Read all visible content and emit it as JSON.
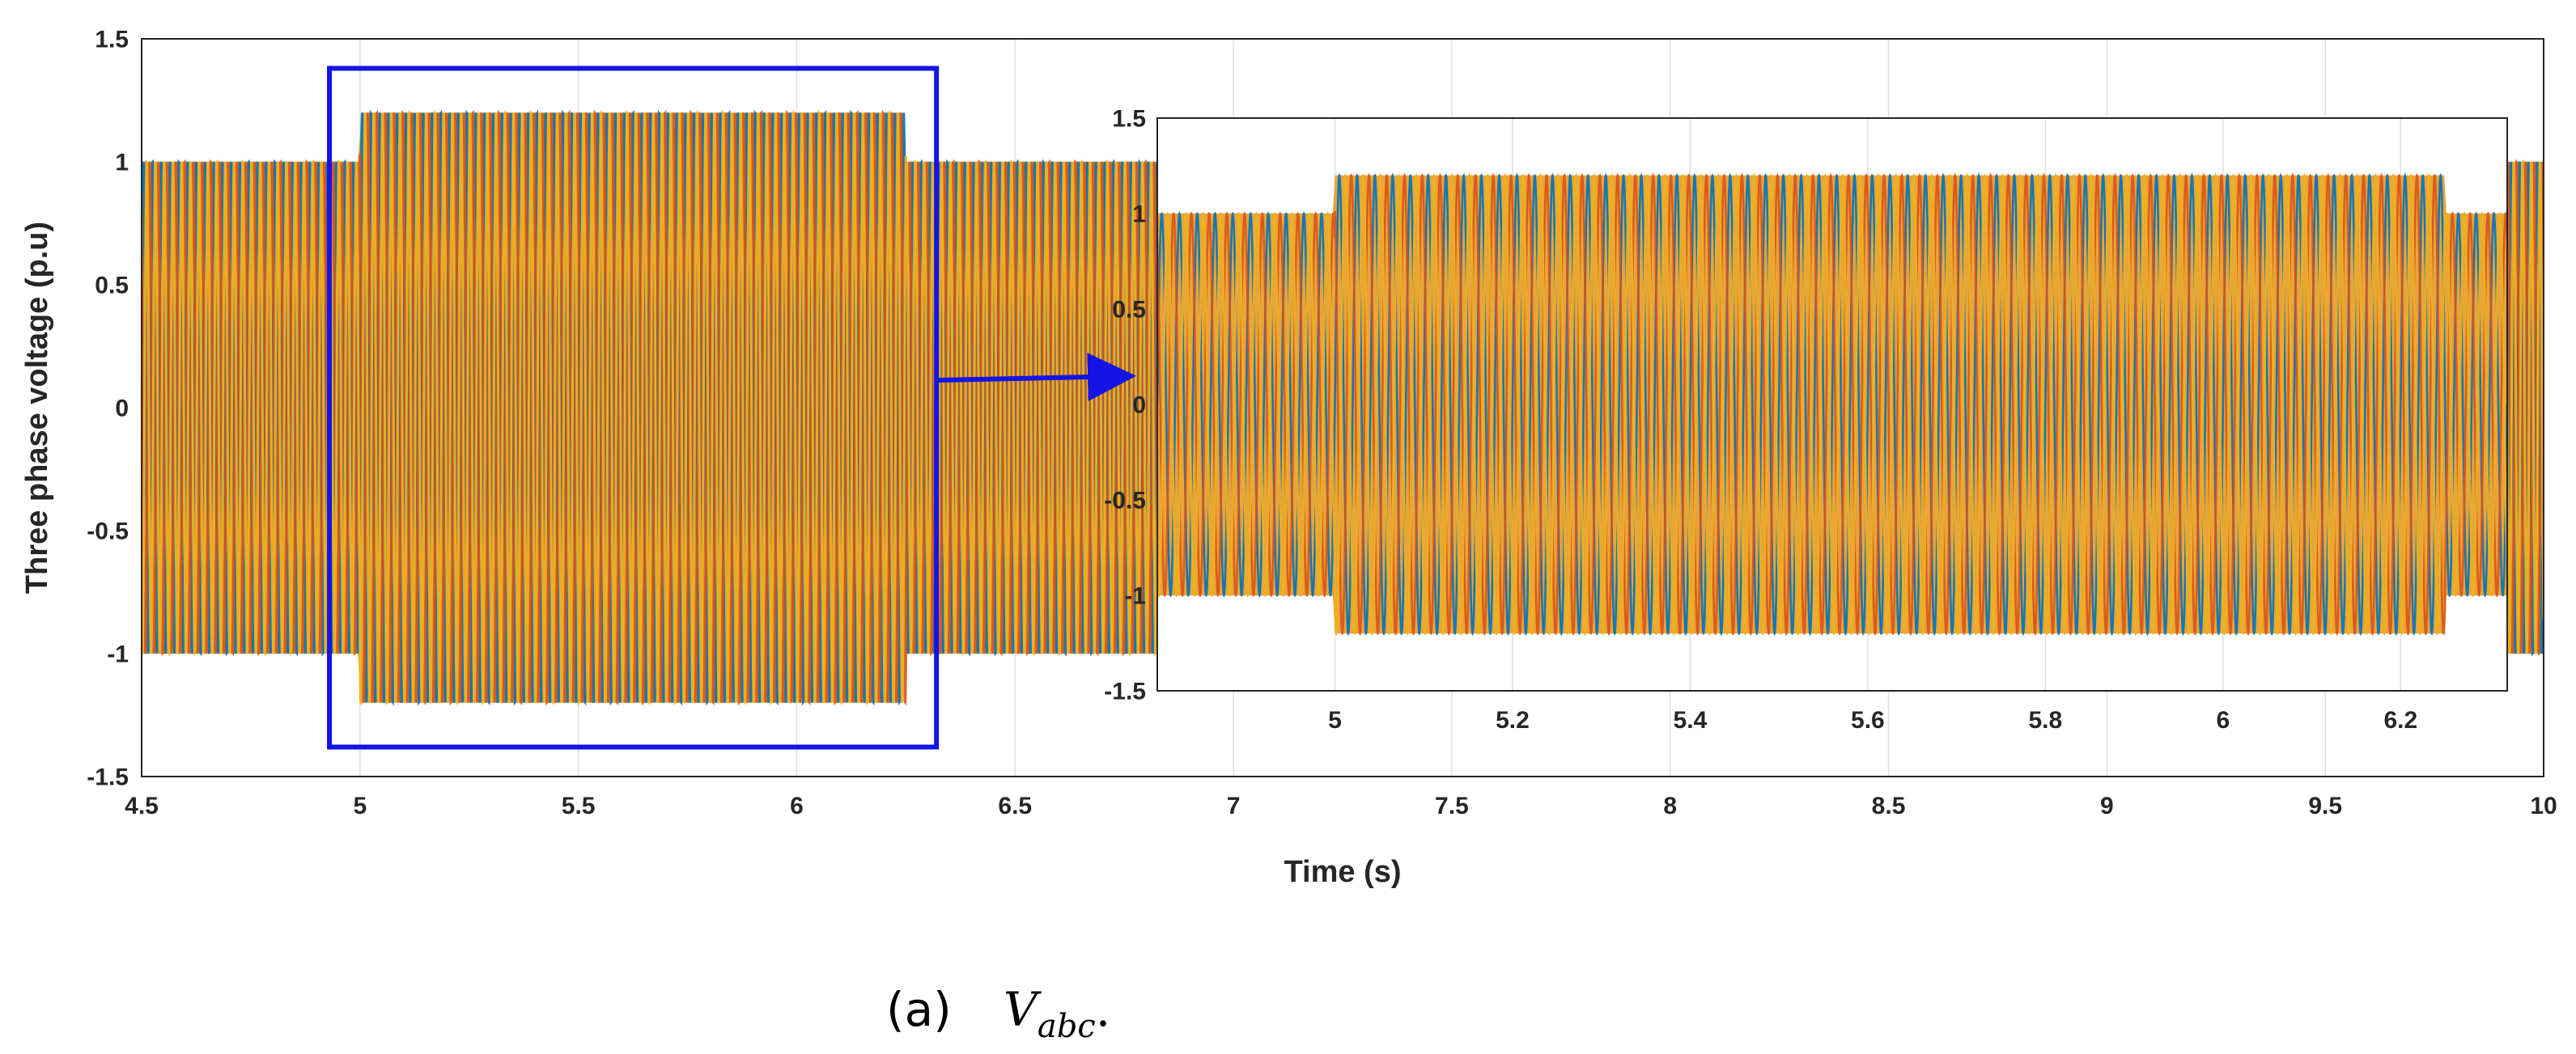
{
  "chart_data": [
    {
      "type": "line",
      "title": "",
      "xlabel": "Time (s)",
      "ylabel": "Three phase voltage (p.u)",
      "xlim": [
        4.5,
        10
      ],
      "ylim": [
        -1.5,
        1.5
      ],
      "xticks": [
        "4.5",
        "5",
        "5.5",
        "6",
        "6.5",
        "7",
        "7.5",
        "8",
        "8.5",
        "9",
        "9.5",
        "10"
      ],
      "yticks": [
        "1.5",
        "1",
        "0.5",
        "0",
        "-0.5",
        "-1",
        "-1.5"
      ],
      "grid": true,
      "signal": {
        "description": "three-phase sinusoidal voltages, amplitude envelope over time",
        "segments": [
          {
            "t_start": 4.5,
            "t_end": 5.0,
            "amplitude": 1.0
          },
          {
            "t_start": 5.0,
            "t_end": 6.25,
            "amplitude": 1.2
          },
          {
            "t_start": 6.25,
            "t_end": 10.0,
            "amplitude": 1.0
          }
        ]
      },
      "series": [
        {
          "color": "#0072BD"
        },
        {
          "color": "#D95319"
        },
        {
          "color": "#EDB120"
        }
      ],
      "highlight_box": {
        "x_range": [
          4.93,
          6.32
        ],
        "y_range": [
          -1.38,
          1.38
        ],
        "color": "#1414E6"
      }
    },
    {
      "type": "line",
      "title": "",
      "xlim": [
        4.8,
        6.32
      ],
      "ylim": [
        -1.5,
        1.5
      ],
      "xticks": [
        "5",
        "5.2",
        "5.4",
        "5.6",
        "5.8",
        "6",
        "6.2"
      ],
      "yticks": [
        "1.5",
        "1",
        "0.5",
        "0",
        "-0.5",
        "-1",
        "-1.5"
      ],
      "grid": true,
      "signal": {
        "segments": [
          {
            "t_start": 4.8,
            "t_end": 5.0,
            "amplitude": 1.0
          },
          {
            "t_start": 5.0,
            "t_end": 6.25,
            "amplitude": 1.2
          },
          {
            "t_start": 6.25,
            "t_end": 6.32,
            "amplitude": 1.0
          }
        ]
      }
    }
  ],
  "caption": {
    "prefix": "(a)",
    "symbol_main": "V",
    "symbol_sub": "abc",
    "suffix": "."
  }
}
